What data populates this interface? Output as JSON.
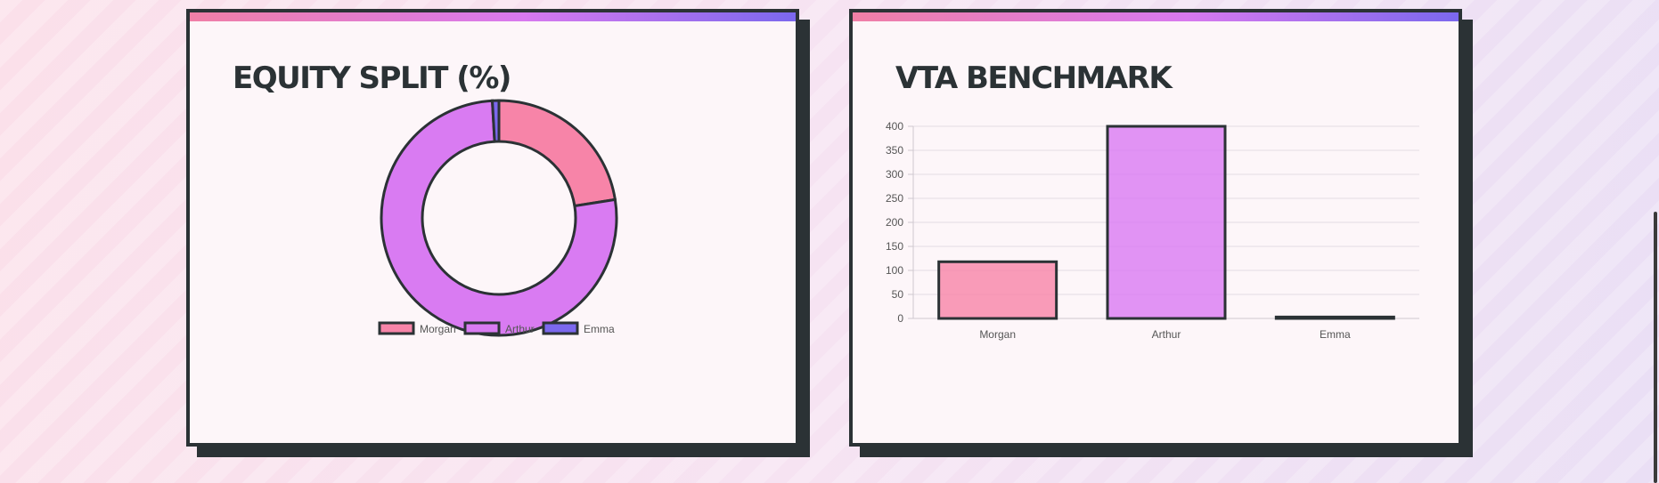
{
  "charts": {
    "equity": {
      "title": "EQUITY SPLIT (%)"
    },
    "vta": {
      "title": "VTA BENCHMARK"
    }
  },
  "colors": {
    "morgan": "#f784a8",
    "arthur": "#d97bf2",
    "emma": "#7b68ee",
    "outline": "#2b3235"
  },
  "chart_data": [
    {
      "type": "pie",
      "variant": "doughnut",
      "title": "EQUITY SPLIT (%)",
      "categories": [
        "Morgan",
        "Arthur",
        "Emma"
      ],
      "values": [
        22.5,
        76.6,
        0.9
      ],
      "legend": "bottom"
    },
    {
      "type": "bar",
      "title": "VTA BENCHMARK",
      "categories": [
        "Morgan",
        "Arthur",
        "Emma"
      ],
      "values": [
        118,
        400,
        3
      ],
      "ylim": [
        0,
        400
      ],
      "yticks": [
        0,
        50,
        100,
        150,
        200,
        250,
        300,
        350,
        400
      ],
      "grid": true
    }
  ]
}
